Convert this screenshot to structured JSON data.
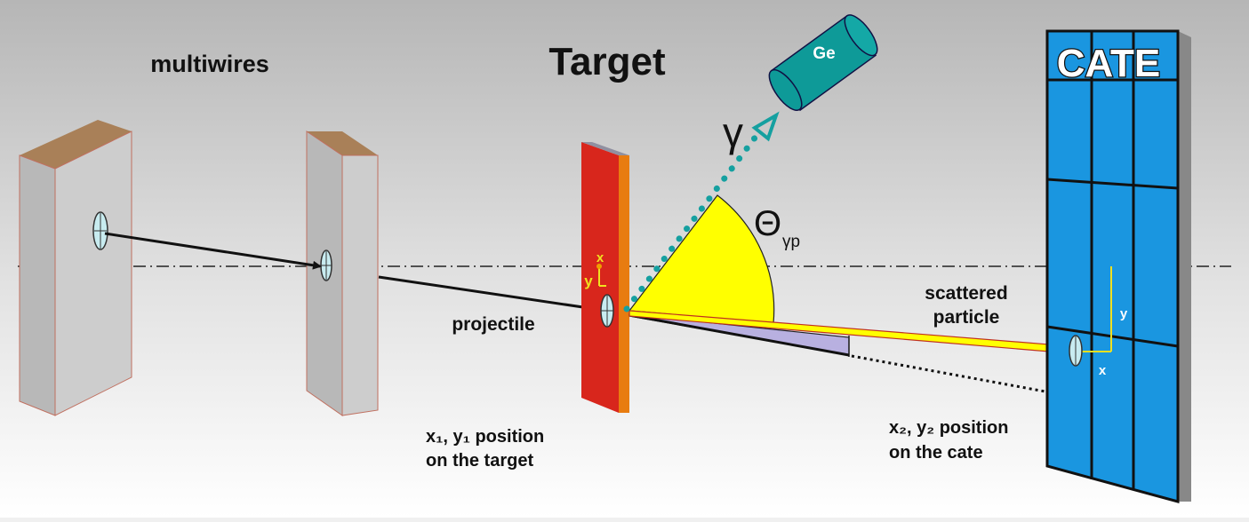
{
  "labels": {
    "multiwires": "multiwires",
    "target": "Target",
    "cate": "CATE",
    "detector": "Ge",
    "gamma": "γ",
    "theta_symbol": "Θ",
    "theta_sub": "γp",
    "projectile": "projectile",
    "scattered_line1": "scattered",
    "scattered_line2": "particle",
    "target_axis_x": "x",
    "target_axis_y": "y",
    "cate_axis_x": "x",
    "cate_axis_y": "y",
    "pos1_line1": "x₁, y₁ position",
    "pos1_line2": "on the target",
    "pos2_line1": "x₂, y₂ position",
    "pos2_line2": "on the cate"
  },
  "colors": {
    "background_top": "#b8b8b8",
    "background_bottom": "#ffffff",
    "wire_frame": "#c8c8c8",
    "wire_top": "#a07850",
    "target_red": "#d8261c",
    "target_orange": "#e87c10",
    "cate_blue": "#1a96e0",
    "detector_teal": "#0e9a98",
    "gamma_dots": "#15a0a0",
    "angle_yellow": "#ffff00",
    "wedge_lavender": "#b8b0e0",
    "axis_yellow": "#f0e020"
  }
}
